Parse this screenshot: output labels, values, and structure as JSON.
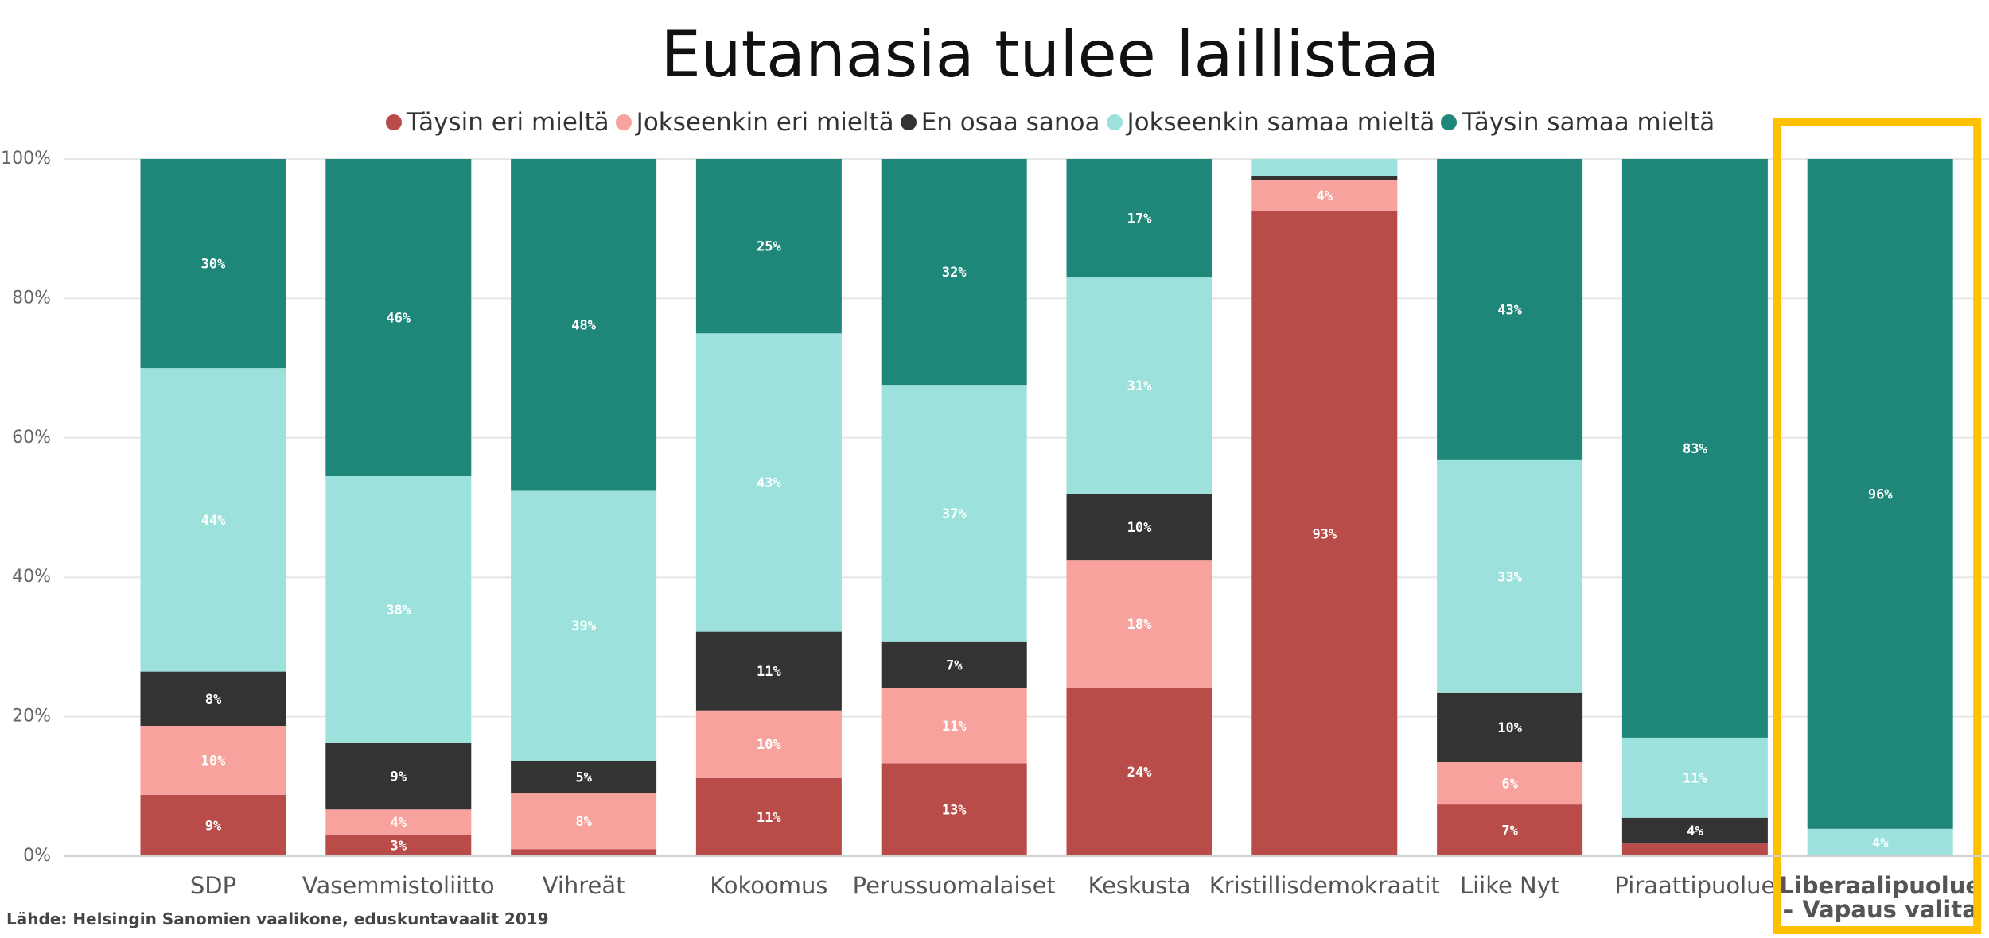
{
  "chart_data": {
    "type": "bar",
    "stacked": true,
    "title": "Eutanasia tulee laillistaa",
    "ylim": [
      0,
      100
    ],
    "y_ticks": [
      "0%",
      "20%",
      "40%",
      "60%",
      "80%",
      "100%"
    ],
    "legend_position": "top-center",
    "categories": [
      "SDP",
      "Vasemmistoliitto",
      "Vihreät",
      "Kokoomus",
      "Perussuomalaiset",
      "Keskusta",
      "Kristillisdemokraatit",
      "Liike Nyt",
      "Piraattipuolue",
      "Liberaalipuolue – Vapaus valita"
    ],
    "category_lines": [
      [
        "SDP"
      ],
      [
        "Vasemmistoliitto"
      ],
      [
        "Vihreät"
      ],
      [
        "Kokoomus"
      ],
      [
        "Perussuomalaiset"
      ],
      [
        "Keskusta"
      ],
      [
        "Kristillisdemokraatit"
      ],
      [
        "Liike Nyt"
      ],
      [
        "Piraattipuolue"
      ],
      [
        "Liberaalipuolue",
        "– Vapaus valita"
      ]
    ],
    "highlighted_category": "Liberaalipuolue – Vapaus valita",
    "series": [
      {
        "name": "Täysin eri mieltä",
        "color": "#B94C49",
        "values": [
          8.8,
          3.1,
          1.0,
          11.2,
          13.3,
          24.2,
          92.5,
          7.4,
          1.8,
          0
        ],
        "labels": [
          "9%",
          "3%",
          "",
          "11%",
          "13%",
          "24%",
          "93%",
          "7%",
          "",
          ""
        ]
      },
      {
        "name": "Jokseenkin eri mieltä",
        "color": "#F7A29D",
        "values": [
          9.9,
          3.6,
          8.0,
          9.7,
          10.8,
          18.2,
          4.5,
          6.1,
          0,
          0
        ],
        "labels": [
          "10%",
          "4%",
          "8%",
          "10%",
          "11%",
          "18%",
          "4%",
          "6%",
          "",
          ""
        ]
      },
      {
        "name": "En osaa sanoa",
        "color": "#333333",
        "values": [
          7.8,
          9.5,
          4.7,
          11.3,
          6.6,
          9.6,
          0.6,
          9.9,
          3.7,
          0
        ],
        "labels": [
          "8%",
          "9%",
          "5%",
          "11%",
          "7%",
          "10%",
          "",
          "10%",
          "4%",
          ""
        ]
      },
      {
        "name": "Jokseenkin samaa mieltä",
        "color": "#9CE1DB",
        "values": [
          43.5,
          38.3,
          38.7,
          42.8,
          36.9,
          31.0,
          2.4,
          33.4,
          11.5,
          3.9
        ],
        "labels": [
          "44%",
          "38%",
          "39%",
          "43%",
          "37%",
          "31%",
          "",
          "33%",
          "11%",
          "4%"
        ]
      },
      {
        "name": "Täysin samaa mieltä",
        "color": "#1F877A",
        "values": [
          30.0,
          45.5,
          47.6,
          25.0,
          32.4,
          17.0,
          0,
          43.2,
          83.0,
          96.1
        ],
        "labels": [
          "30%",
          "46%",
          "48%",
          "25%",
          "32%",
          "17%",
          "",
          "43%",
          "83%",
          "96%"
        ]
      }
    ],
    "source": "Lähde: Helsingin Sanomien vaalikone, eduskuntavaalit 2019"
  },
  "colors": {
    "highlight_box": "#FFC000",
    "grid": "#E6E6E6"
  }
}
